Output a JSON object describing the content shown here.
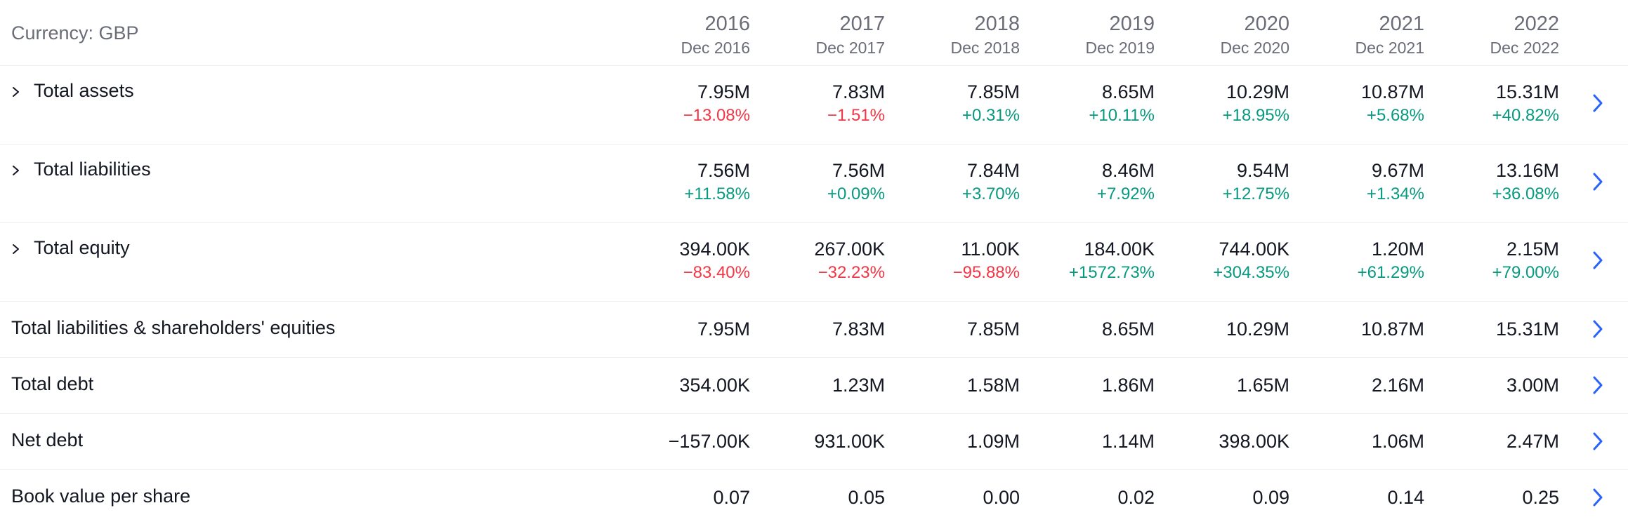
{
  "currency_label": "Currency: GBP",
  "colors": {
    "positive": "#089981",
    "negative": "#f23645",
    "link_arrow": "#2962ff"
  },
  "periods": [
    {
      "year": "2016",
      "period": "Dec 2016"
    },
    {
      "year": "2017",
      "period": "Dec 2017"
    },
    {
      "year": "2018",
      "period": "Dec 2018"
    },
    {
      "year": "2019",
      "period": "Dec 2019"
    },
    {
      "year": "2020",
      "period": "Dec 2020"
    },
    {
      "year": "2021",
      "period": "Dec 2021"
    },
    {
      "year": "2022",
      "period": "Dec 2022"
    }
  ],
  "rows": [
    {
      "label": "Total assets",
      "expandable": true,
      "values": [
        "7.95M",
        "7.83M",
        "7.85M",
        "8.65M",
        "10.29M",
        "10.87M",
        "15.31M"
      ],
      "changes": [
        "−13.08%",
        "−1.51%",
        "+0.31%",
        "+10.11%",
        "+18.95%",
        "+5.68%",
        "+40.82%"
      ]
    },
    {
      "label": "Total liabilities",
      "expandable": true,
      "values": [
        "7.56M",
        "7.56M",
        "7.84M",
        "8.46M",
        "9.54M",
        "9.67M",
        "13.16M"
      ],
      "changes": [
        "+11.58%",
        "+0.09%",
        "+3.70%",
        "+7.92%",
        "+12.75%",
        "+1.34%",
        "+36.08%"
      ]
    },
    {
      "label": "Total equity",
      "expandable": true,
      "values": [
        "394.00K",
        "267.00K",
        "11.00K",
        "184.00K",
        "744.00K",
        "1.20M",
        "2.15M"
      ],
      "changes": [
        "−83.40%",
        "−32.23%",
        "−95.88%",
        "+1572.73%",
        "+304.35%",
        "+61.29%",
        "+79.00%"
      ]
    },
    {
      "label": "Total liabilities & shareholders' equities",
      "expandable": false,
      "values": [
        "7.95M",
        "7.83M",
        "7.85M",
        "8.65M",
        "10.29M",
        "10.87M",
        "15.31M"
      ]
    },
    {
      "label": "Total debt",
      "expandable": false,
      "values": [
        "354.00K",
        "1.23M",
        "1.58M",
        "1.86M",
        "1.65M",
        "2.16M",
        "3.00M"
      ]
    },
    {
      "label": "Net debt",
      "expandable": false,
      "values": [
        "−157.00K",
        "931.00K",
        "1.09M",
        "1.14M",
        "398.00K",
        "1.06M",
        "2.47M"
      ]
    },
    {
      "label": "Book value per share",
      "expandable": false,
      "values": [
        "0.07",
        "0.05",
        "0.00",
        "0.02",
        "0.09",
        "0.14",
        "0.25"
      ]
    }
  ]
}
